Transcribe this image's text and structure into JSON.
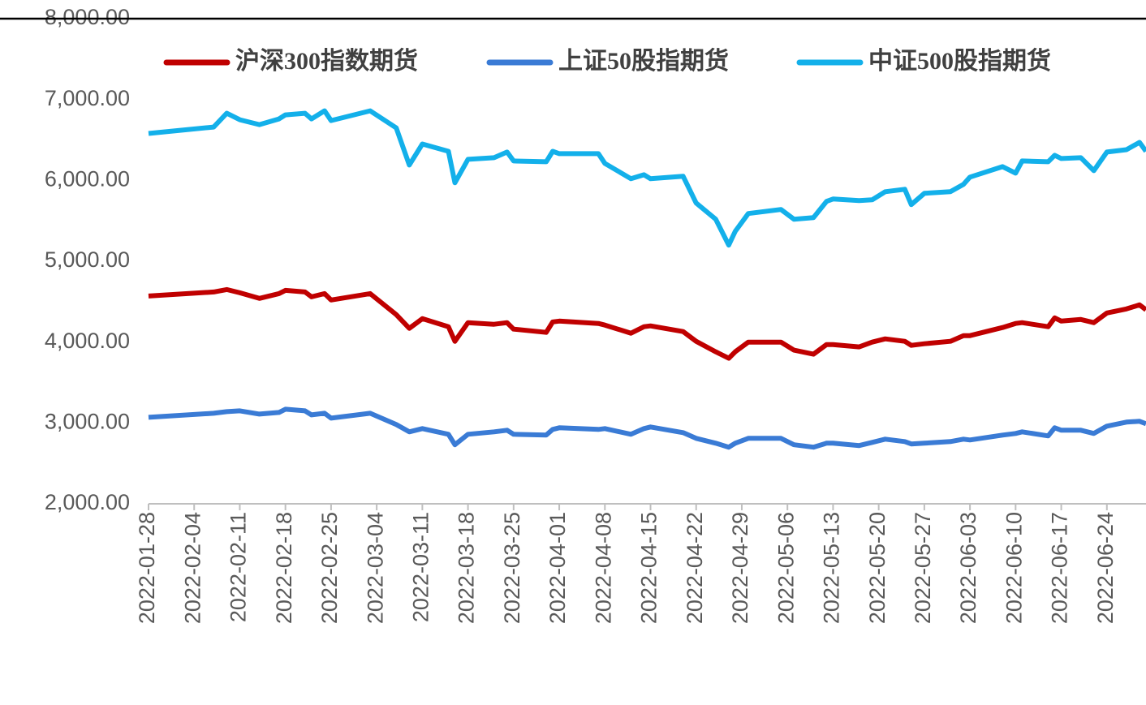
{
  "chart_data": {
    "type": "line",
    "x": [
      "2022-01-28",
      "2022-02-07",
      "2022-02-09",
      "2022-02-11",
      "2022-02-14",
      "2022-02-17",
      "2022-02-18",
      "2022-02-21",
      "2022-02-22",
      "2022-02-24",
      "2022-02-25",
      "2022-03-03",
      "2022-03-07",
      "2022-03-09",
      "2022-03-11",
      "2022-03-15",
      "2022-03-16",
      "2022-03-18",
      "2022-03-22",
      "2022-03-24",
      "2022-03-25",
      "2022-03-30",
      "2022-03-31",
      "2022-04-01",
      "2022-04-07",
      "2022-04-08",
      "2022-04-12",
      "2022-04-14",
      "2022-04-15",
      "2022-04-20",
      "2022-04-22",
      "2022-04-25",
      "2022-04-27",
      "2022-04-28",
      "2022-04-30",
      "2022-05-05",
      "2022-05-07",
      "2022-05-10",
      "2022-05-12",
      "2022-05-13",
      "2022-05-17",
      "2022-05-19",
      "2022-05-21",
      "2022-05-24",
      "2022-05-25",
      "2022-05-27",
      "2022-05-31",
      "2022-06-02",
      "2022-06-03",
      "2022-06-08",
      "2022-06-10",
      "2022-06-11",
      "2022-06-15",
      "2022-06-16",
      "2022-06-17",
      "2022-06-20",
      "2022-06-22",
      "2022-06-24",
      "2022-06-27",
      "2022-06-29",
      "2022-06-30"
    ],
    "series": [
      {
        "name": "沪深300指数期货",
        "color": "#c00000",
        "values": [
          4570,
          4620,
          4650,
          4610,
          4540,
          4600,
          4640,
          4620,
          4560,
          4600,
          4520,
          4600,
          4340,
          4170,
          4290,
          4190,
          4010,
          4240,
          4220,
          4240,
          4160,
          4120,
          4250,
          4260,
          4230,
          4210,
          4110,
          4190,
          4200,
          4130,
          4010,
          3880,
          3800,
          3880,
          4000,
          4000,
          3900,
          3850,
          3970,
          3970,
          3940,
          4000,
          4040,
          4010,
          3960,
          3980,
          4010,
          4080,
          4080,
          4180,
          4230,
          4240,
          4190,
          4300,
          4260,
          4280,
          4240,
          4360,
          4410,
          4460,
          4400
        ]
      },
      {
        "name": "上证50股指期货",
        "color": "#3a7bd5",
        "values": [
          3070,
          3120,
          3140,
          3150,
          3110,
          3130,
          3170,
          3150,
          3100,
          3120,
          3060,
          3120,
          2980,
          2890,
          2930,
          2860,
          2730,
          2860,
          2890,
          2910,
          2860,
          2850,
          2920,
          2940,
          2920,
          2930,
          2860,
          2930,
          2950,
          2880,
          2810,
          2750,
          2700,
          2750,
          2810,
          2810,
          2730,
          2700,
          2750,
          2750,
          2720,
          2760,
          2800,
          2770,
          2740,
          2750,
          2770,
          2800,
          2790,
          2850,
          2870,
          2890,
          2840,
          2940,
          2910,
          2910,
          2870,
          2960,
          3010,
          3020,
          2990
        ]
      },
      {
        "name": "中证500股指期货",
        "color": "#13b0ea",
        "values": [
          6580,
          6660,
          6830,
          6750,
          6690,
          6760,
          6810,
          6830,
          6760,
          6860,
          6740,
          6860,
          6650,
          6190,
          6450,
          6360,
          5970,
          6260,
          6280,
          6350,
          6240,
          6230,
          6360,
          6330,
          6330,
          6210,
          6020,
          6070,
          6020,
          6050,
          5720,
          5520,
          5200,
          5370,
          5590,
          5640,
          5520,
          5540,
          5740,
          5770,
          5750,
          5760,
          5860,
          5890,
          5700,
          5840,
          5860,
          5950,
          6040,
          6170,
          6090,
          6240,
          6230,
          6310,
          6270,
          6280,
          6120,
          6350,
          6380,
          6470,
          6360
        ]
      }
    ],
    "xlim": [
      "2022-01-28",
      "2022-06-30"
    ],
    "xticks": [
      "2022-01-28",
      "2022-02-04",
      "2022-02-11",
      "2022-02-18",
      "2022-02-25",
      "2022-03-04",
      "2022-03-11",
      "2022-03-18",
      "2022-03-25",
      "2022-04-01",
      "2022-04-08",
      "2022-04-15",
      "2022-04-22",
      "2022-04-29",
      "2022-05-06",
      "2022-05-13",
      "2022-05-20",
      "2022-05-27",
      "2022-06-03",
      "2022-06-10",
      "2022-06-17",
      "2022-06-24"
    ],
    "ylim": [
      2000,
      8000
    ],
    "yticks": [
      {
        "value": 2000,
        "label": "2,000.00"
      },
      {
        "value": 3000,
        "label": "3,000.00"
      },
      {
        "value": 4000,
        "label": "4,000.00"
      },
      {
        "value": 5000,
        "label": "5,000.00"
      },
      {
        "value": 6000,
        "label": "6,000.00"
      },
      {
        "value": 7000,
        "label": "7,000.00"
      },
      {
        "value": 8000,
        "label": "8,000.00"
      }
    ],
    "legend": "top"
  }
}
